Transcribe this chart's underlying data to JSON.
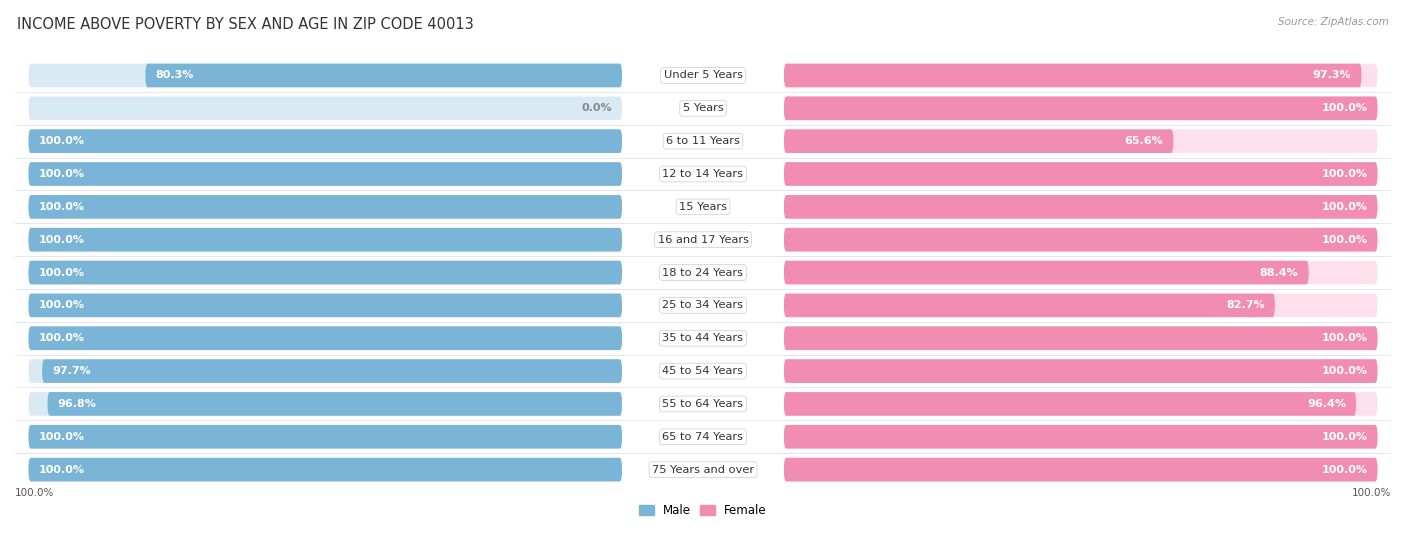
{
  "title": "INCOME ABOVE POVERTY BY SEX AND AGE IN ZIP CODE 40013",
  "source": "Source: ZipAtlas.com",
  "categories": [
    "Under 5 Years",
    "5 Years",
    "6 to 11 Years",
    "12 to 14 Years",
    "15 Years",
    "16 and 17 Years",
    "18 to 24 Years",
    "25 to 34 Years",
    "35 to 44 Years",
    "45 to 54 Years",
    "55 to 64 Years",
    "65 to 74 Years",
    "75 Years and over"
  ],
  "male_values": [
    80.3,
    0.0,
    100.0,
    100.0,
    100.0,
    100.0,
    100.0,
    100.0,
    100.0,
    97.7,
    96.8,
    100.0,
    100.0
  ],
  "female_values": [
    97.3,
    100.0,
    65.6,
    100.0,
    100.0,
    100.0,
    88.4,
    82.7,
    100.0,
    100.0,
    96.4,
    100.0,
    100.0
  ],
  "male_color": "#7ab5d8",
  "female_color": "#f08db0",
  "male_bg_color": "#daeaf5",
  "female_bg_color": "#fce0ec",
  "male_label": "Male",
  "female_label": "Female",
  "title_fontsize": 10.5,
  "label_fontsize": 8.2,
  "value_fontsize": 8.0,
  "source_fontsize": 7.5,
  "legend_fontsize": 8.5
}
